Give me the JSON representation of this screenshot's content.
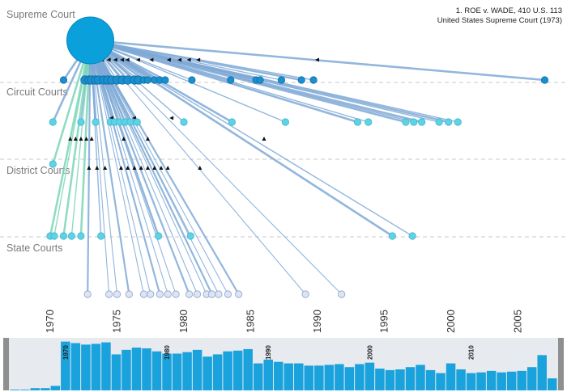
{
  "case_info": {
    "title_line1": "1. ROE v. WADE, 410 U.S. 113",
    "title_line2": "United States Supreme Court (1973)"
  },
  "tiers": {
    "supreme": "Supreme Court",
    "circuit": "Circuit Courts",
    "district": "District Courts",
    "state": "State Courts"
  },
  "colors": {
    "supreme": "#0aa0dc",
    "circuit": "#1a8fcf",
    "district": "#5fd3e6",
    "state": "#dde4f5",
    "edge": "#7fa9d6",
    "edge_green": "#7cd6b8",
    "bar": "#1aa2dc",
    "minimap_bg": "#e7ebef",
    "handle": "#8f8f8f"
  },
  "chart_data": [
    {
      "type": "network-timeline",
      "description_free": true,
      "x_ticks": [
        "1970",
        "1975",
        "1980",
        "1985",
        "1990",
        "1995",
        "2000",
        "2005"
      ],
      "xlim": [
        1968,
        2009
      ],
      "central_case": {
        "year": 1973,
        "tier": "supreme"
      },
      "citing_cases": {
        "circuit": [
          1971,
          1972.6,
          1972.9,
          1973.1,
          1973.4,
          1973.6,
          1974.0,
          1974.3,
          1974.6,
          1975.0,
          1975.4,
          1975.8,
          1976.3,
          1976.6,
          1977.0,
          1977.3,
          1977.8,
          1978.2,
          1978.6,
          1980.6,
          1983.5,
          1985.4,
          1985.7,
          1987.3,
          1988.8,
          1989.7,
          2007
        ],
        "district": [
          1970.2,
          1972.3,
          1973.4,
          1974.5,
          1974.8,
          1975.2,
          1975.6,
          1976.0,
          1976.5,
          1980.0,
          1983.6,
          1987.6,
          1993.0,
          1993.8,
          1996.6,
          1997.2,
          1997.8,
          1999.1,
          1999.8,
          2000.5
        ],
        "district_low": [
          1970.2
        ],
        "state": [
          1970.0,
          1970.3,
          1971.0,
          1971.6,
          1972.3,
          1973.8,
          1978.1,
          1980.5,
          1995.6,
          1997.1
        ],
        "bottom": [
          1972.8,
          1974.4,
          1975.0,
          1975.9,
          1977.0,
          1977.5,
          1978.2,
          1978.8,
          1979.4,
          1980.4,
          1981.0,
          1981.7,
          1982.1,
          1982.6,
          1983.3,
          1984.1,
          1989.1,
          1991.8
        ]
      }
    },
    {
      "type": "bar",
      "x_ticks": [
        "1970",
        "1980",
        "1990",
        "2000",
        "2010"
      ],
      "xlim": [
        1964,
        2017
      ],
      "ylim": [
        0,
        7
      ],
      "start_year": 1965,
      "values": [
        0.1,
        0.1,
        0.3,
        0.3,
        0.6,
        6.5,
        6.3,
        6.1,
        6.2,
        6.4,
        4.8,
        5.4,
        5.7,
        5.6,
        5.2,
        4.9,
        4.9,
        5.1,
        5.4,
        4.5,
        4.8,
        5.2,
        5.3,
        5.5,
        3.6,
        4.1,
        3.8,
        3.6,
        3.6,
        3.3,
        3.3,
        3.4,
        3.5,
        3.1,
        3.5,
        3.7,
        2.9,
        2.7,
        2.8,
        3.1,
        3.4,
        2.7,
        2.3,
        3.6,
        2.8,
        2.3,
        2.4,
        2.6,
        2.4,
        2.5,
        2.6,
        3.1,
        4.7,
        1.6
      ]
    }
  ]
}
